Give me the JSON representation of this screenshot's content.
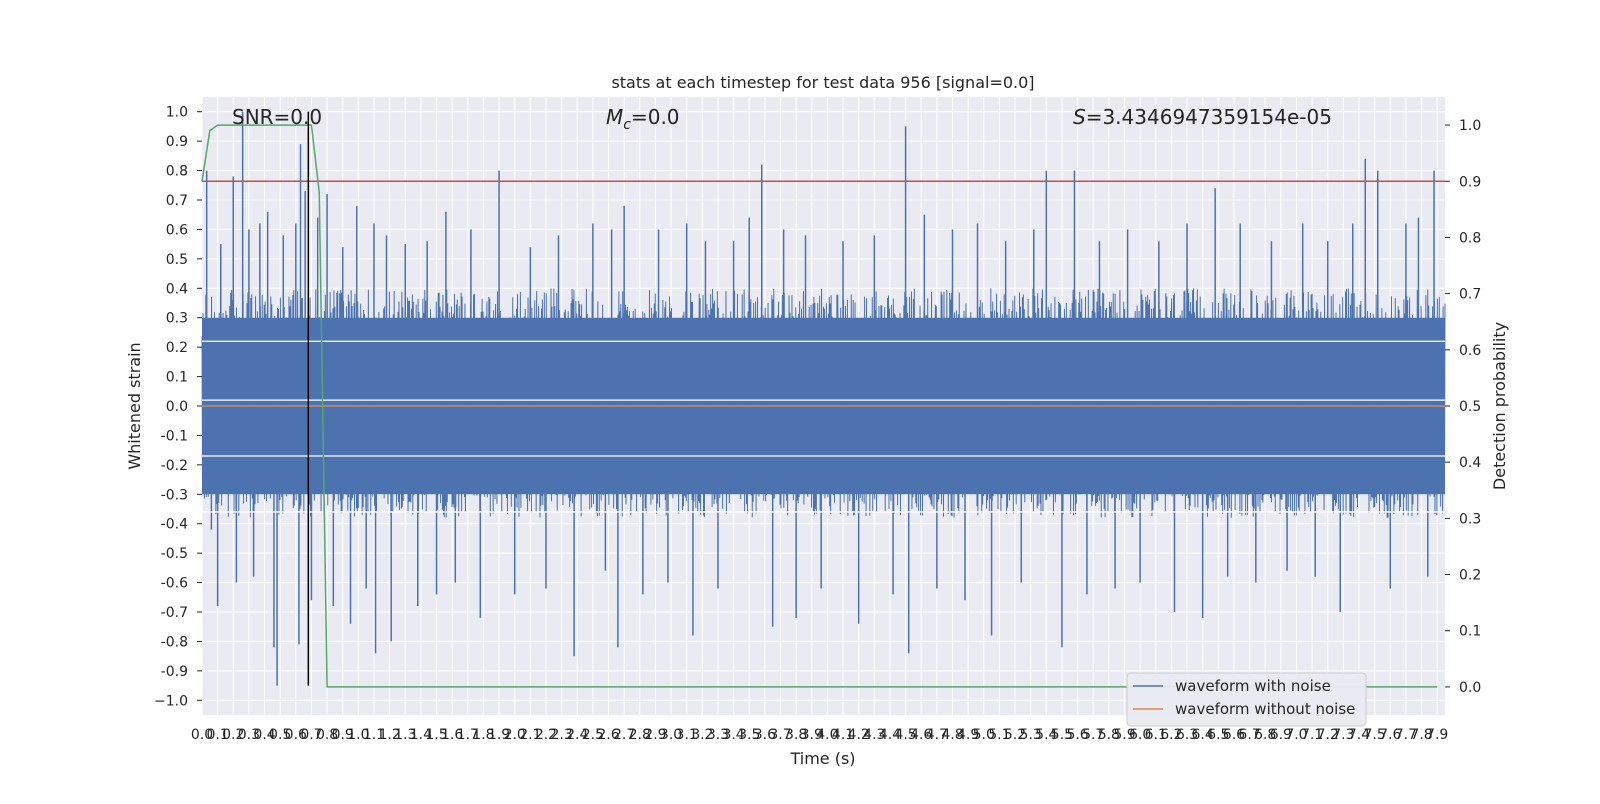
{
  "chart_data": {
    "type": "line",
    "title": "stats at each timestep for test data 956 [signal=0.0]",
    "xlabel": "Time (s)",
    "ylabel": "Whitened strain",
    "ylabel_right": "Detection probability",
    "xlim": [
      0.0,
      7.95
    ],
    "ylim": [
      -1.05,
      1.05
    ],
    "ylim_right": [
      -0.05,
      1.05
    ],
    "grid": true,
    "x_ticks": [
      "0.0",
      "0.1",
      "0.2",
      "0.3",
      "0.4",
      "0.5",
      "0.6",
      "0.7",
      "0.8",
      "0.9",
      "1.0",
      "1.1",
      "1.2",
      "1.3",
      "1.4",
      "1.5",
      "1.6",
      "1.7",
      "1.8",
      "1.9",
      "2.0",
      "2.1",
      "2.2",
      "2.3",
      "2.4",
      "2.5",
      "2.6",
      "2.7",
      "2.8",
      "2.9",
      "3.0",
      "3.1",
      "3.2",
      "3.3",
      "3.4",
      "3.5",
      "3.6",
      "3.7",
      "3.8",
      "3.9",
      "4.0",
      "4.1",
      "4.2",
      "4.3",
      "4.4",
      "4.5",
      "4.6",
      "4.7",
      "4.8",
      "4.9",
      "5.0",
      "5.1",
      "5.2",
      "5.3",
      "5.4",
      "5.5",
      "5.6",
      "5.7",
      "5.8",
      "5.9",
      "6.0",
      "6.1",
      "6.2",
      "6.3",
      "6.4",
      "6.5",
      "6.6",
      "6.7",
      "6.8",
      "6.9",
      "7.0",
      "7.1",
      "7.2",
      "7.3",
      "7.4",
      "7.5",
      "7.6",
      "7.7",
      "7.8",
      "7.9"
    ],
    "y_ticks": [
      "1.0",
      "0.9",
      "0.8",
      "0.7",
      "0.6",
      "0.5",
      "0.4",
      "0.3",
      "0.2",
      "0.1",
      "0.0",
      "-0.1",
      "-0.2",
      "-0.3",
      "-0.4",
      "-0.5",
      "-0.6",
      "-0.7",
      "-0.8",
      "-0.9",
      "−1.0"
    ],
    "y_ticks_right": [
      "1.0",
      "0.9",
      "0.8",
      "0.7",
      "0.6",
      "0.5",
      "0.4",
      "0.3",
      "0.2",
      "0.1",
      "0.0"
    ],
    "annotations": {
      "snr": "SNR=0.0",
      "mc_symbol": "M",
      "mc_sub": "c",
      "mc_value": "=0.0",
      "s_symbol": "S",
      "s_value": "=3.4346947359154e-05"
    },
    "legend": {
      "position": "lower right",
      "entries": [
        {
          "label": "waveform with noise",
          "color": "#4c72b0"
        },
        {
          "label": "waveform without noise",
          "color": "#dd8452"
        }
      ]
    },
    "series": [
      {
        "name": "waveform with noise",
        "color": "#4c72b0",
        "noise_envelope_lower": -0.38,
        "noise_envelope_upper": 0.4,
        "peaks": [
          [
            0.03,
            0.8
          ],
          [
            0.06,
            -0.42
          ],
          [
            0.1,
            -0.68
          ],
          [
            0.12,
            0.55
          ],
          [
            0.2,
            0.78
          ],
          [
            0.22,
            -0.6
          ],
          [
            0.26,
            1.0
          ],
          [
            0.3,
            0.6
          ],
          [
            0.33,
            -0.58
          ],
          [
            0.37,
            0.62
          ],
          [
            0.42,
            0.66
          ],
          [
            0.46,
            -0.82
          ],
          [
            0.48,
            -0.95
          ],
          [
            0.52,
            0.58
          ],
          [
            0.6,
            0.62
          ],
          [
            0.62,
            -0.81
          ],
          [
            0.63,
            0.89
          ],
          [
            0.66,
            0.73
          ],
          [
            0.7,
            -0.66
          ],
          [
            0.74,
            0.64
          ],
          [
            0.8,
            0.72
          ],
          [
            0.84,
            -0.68
          ],
          [
            0.9,
            0.54
          ],
          [
            0.95,
            -0.74
          ],
          [
            0.99,
            0.68
          ],
          [
            1.05,
            -0.62
          ],
          [
            1.1,
            0.62
          ],
          [
            1.11,
            -0.84
          ],
          [
            1.18,
            0.58
          ],
          [
            1.21,
            -0.8
          ],
          [
            1.3,
            0.55
          ],
          [
            1.38,
            -0.68
          ],
          [
            1.44,
            0.56
          ],
          [
            1.5,
            -0.64
          ],
          [
            1.56,
            0.66
          ],
          [
            1.62,
            -0.6
          ],
          [
            1.72,
            0.6
          ],
          [
            1.78,
            -0.72
          ],
          [
            1.9,
            0.8
          ],
          [
            2.0,
            -0.64
          ],
          [
            2.1,
            0.54
          ],
          [
            2.2,
            -0.62
          ],
          [
            2.28,
            0.58
          ],
          [
            2.38,
            -0.85
          ],
          [
            2.5,
            0.62
          ],
          [
            2.58,
            -0.56
          ],
          [
            2.62,
            0.6
          ],
          [
            2.66,
            -0.82
          ],
          [
            2.7,
            0.68
          ],
          [
            2.82,
            -0.64
          ],
          [
            2.92,
            0.6
          ],
          [
            2.98,
            -0.6
          ],
          [
            3.1,
            0.62
          ],
          [
            3.14,
            -0.78
          ],
          [
            3.22,
            0.56
          ],
          [
            3.3,
            -0.62
          ],
          [
            3.4,
            0.56
          ],
          [
            3.5,
            0.64
          ],
          [
            3.58,
            0.82
          ],
          [
            3.65,
            -0.75
          ],
          [
            3.72,
            0.6
          ],
          [
            3.8,
            -0.72
          ],
          [
            3.86,
            0.58
          ],
          [
            3.96,
            -0.62
          ],
          [
            4.1,
            0.56
          ],
          [
            4.2,
            -0.74
          ],
          [
            4.3,
            0.58
          ],
          [
            4.42,
            -0.64
          ],
          [
            4.5,
            0.95
          ],
          [
            4.52,
            -0.84
          ],
          [
            4.62,
            0.65
          ],
          [
            4.7,
            -0.62
          ],
          [
            4.8,
            0.6
          ],
          [
            4.88,
            -0.66
          ],
          [
            4.96,
            0.62
          ],
          [
            5.05,
            -0.78
          ],
          [
            5.14,
            0.56
          ],
          [
            5.24,
            -0.6
          ],
          [
            5.32,
            0.6
          ],
          [
            5.4,
            0.8
          ],
          [
            5.5,
            -0.82
          ],
          [
            5.58,
            0.8
          ],
          [
            5.66,
            -0.64
          ],
          [
            5.74,
            0.56
          ],
          [
            5.84,
            -0.62
          ],
          [
            5.92,
            0.6
          ],
          [
            6.0,
            -0.6
          ],
          [
            6.12,
            0.56
          ],
          [
            6.22,
            -0.7
          ],
          [
            6.3,
            0.62
          ],
          [
            6.4,
            -0.72
          ],
          [
            6.48,
            0.74
          ],
          [
            6.56,
            -0.58
          ],
          [
            6.64,
            0.62
          ],
          [
            6.74,
            -0.6
          ],
          [
            6.84,
            0.56
          ],
          [
            6.94,
            -0.56
          ],
          [
            7.04,
            0.62
          ],
          [
            7.12,
            -0.58
          ],
          [
            7.2,
            0.56
          ],
          [
            7.28,
            -0.7
          ],
          [
            7.36,
            0.62
          ],
          [
            7.44,
            0.84
          ],
          [
            7.52,
            0.8
          ],
          [
            7.6,
            -0.62
          ],
          [
            7.7,
            0.62
          ],
          [
            7.78,
            0.64
          ],
          [
            7.84,
            -0.58
          ],
          [
            7.88,
            0.8
          ]
        ]
      },
      {
        "name": "waveform without noise",
        "color": "#dd8452",
        "x": [
          0.0,
          7.95
        ],
        "y": [
          0.0,
          0.0
        ]
      }
    ],
    "detection_probability": {
      "color": "#55a868",
      "axis": "right",
      "x": [
        0.0,
        0.05,
        0.1,
        0.15,
        0.2,
        0.3,
        0.4,
        0.5,
        0.6,
        0.7,
        0.75,
        0.8,
        7.9
      ],
      "y": [
        0.9,
        0.99,
        1.0,
        1.0,
        1.0,
        1.0,
        1.0,
        1.0,
        1.0,
        1.0,
        0.88,
        0.0,
        0.0
      ]
    },
    "threshold_line": {
      "axis": "right",
      "value": 0.9,
      "color": "#c44e52"
    },
    "marker_line": {
      "x": 0.68,
      "color": "#000000"
    },
    "white_reference_lines": [
      0.22,
      0.02,
      -0.17,
      -0.36
    ]
  }
}
